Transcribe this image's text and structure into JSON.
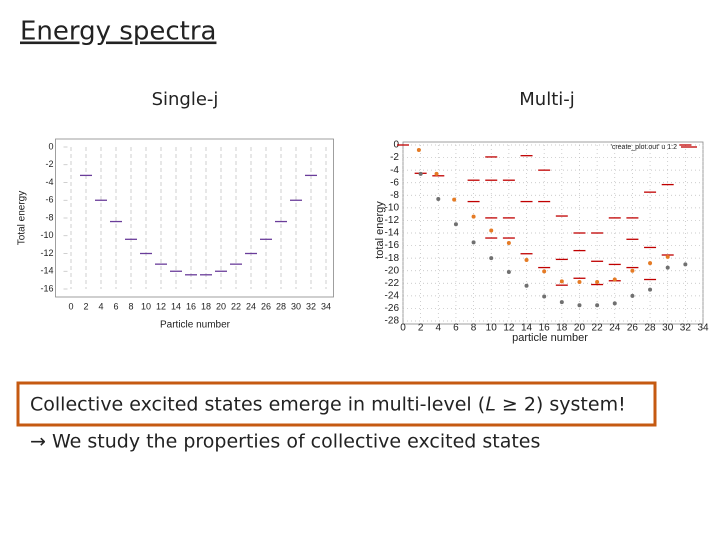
{
  "title": "Energy spectra",
  "highlight": "Collective excited states emerge in multi-level (𝐿 ≥ 2) system!",
  "note": "→ We study the properties of collective excited states",
  "chart_data": [
    {
      "type": "scatter",
      "subtitle": "Single-j",
      "x_label": "Particle number",
      "y_label": "Total energy",
      "xlim": [
        -1,
        35
      ],
      "ylim": [
        -16,
        0
      ],
      "xticks": [
        0,
        2,
        4,
        6,
        8,
        10,
        12,
        14,
        16,
        18,
        20,
        22,
        24,
        26,
        28,
        30,
        32,
        34
      ],
      "yticks": [
        0,
        -2,
        -4,
        -6,
        -8,
        -10,
        -12,
        -14,
        -16
      ],
      "grid": "x",
      "series": [
        {
          "color": "#6a3d9a",
          "marker": "dash",
          "x": [
            2,
            4,
            6,
            8,
            10,
            12,
            14,
            16,
            18,
            20,
            22,
            24,
            26,
            28,
            30,
            32
          ],
          "values": [
            -3.2,
            -6,
            -8.4,
            -10.4,
            -12,
            -13.2,
            -14,
            -14.4,
            -14.4,
            -14,
            -13.2,
            -12,
            -10.4,
            -8.4,
            -6,
            -3.2
          ]
        }
      ]
    },
    {
      "type": "scatter",
      "subtitle": "Multi-j",
      "x_label": "particle number",
      "y_label": "total energy",
      "xlim": [
        0,
        34
      ],
      "ylim": [
        -28,
        0
      ],
      "xticks": [
        0,
        2,
        4,
        6,
        8,
        10,
        12,
        14,
        16,
        18,
        20,
        22,
        24,
        26,
        28,
        30,
        32,
        34
      ],
      "yticks": [
        0,
        -2,
        -4,
        -6,
        -8,
        -10,
        -12,
        -14,
        -16,
        -18,
        -20,
        -22,
        -24,
        -26,
        -28
      ],
      "grid": "both",
      "legend": "upper right",
      "series": [
        {
          "name": "'create_plot.out' u 1:2",
          "color": "#c00000",
          "marker": "dash",
          "x": [
            0,
            2,
            4,
            8,
            8,
            10,
            10,
            10,
            10,
            12,
            12,
            12,
            14,
            14,
            14,
            16,
            16,
            16,
            18,
            18,
            18,
            20,
            20,
            20,
            22,
            22,
            22,
            24,
            24,
            24,
            26,
            26,
            26,
            28,
            28,
            28,
            30,
            30,
            32
          ],
          "values": [
            0,
            -4.5,
            -4.9,
            -5.6,
            -9,
            -1.9,
            -5.6,
            -11.6,
            -14.8,
            -5.6,
            -11.6,
            -14.8,
            -1.7,
            -9,
            -17.3,
            -4,
            -9,
            -19.5,
            -11.3,
            -18.2,
            -22.3,
            -14,
            -16.8,
            -21.2,
            -14,
            -18.5,
            -22.2,
            -11.6,
            -19,
            -21.6,
            -11.6,
            -15,
            -19.5,
            -7.5,
            -16.3,
            -21.4,
            -6.3,
            -17.5,
            0
          ]
        },
        {
          "color": "#e57b25",
          "marker": "circle",
          "x": [
            1.8,
            3.8,
            5.8,
            8,
            10,
            12,
            14,
            16,
            18,
            20,
            22,
            24,
            26,
            28,
            30
          ],
          "values": [
            -0.8,
            -4.6,
            -8.7,
            -11.4,
            -13.6,
            -15.6,
            -18.3,
            -20.1,
            -21.7,
            -21.8,
            -21.8,
            -21.4,
            -20,
            -18.8,
            -17.8
          ]
        },
        {
          "color": "#707070",
          "marker": "circle",
          "x": [
            2,
            4,
            6,
            8,
            10,
            12,
            14,
            16,
            18,
            20,
            22,
            24,
            26,
            28,
            30,
            32
          ],
          "values": [
            -4.6,
            -8.6,
            -12.6,
            -15.5,
            -18,
            -20.2,
            -22.4,
            -24.1,
            -25,
            -25.5,
            -25.5,
            -25.2,
            -24,
            -23,
            -19.5,
            -19
          ]
        }
      ]
    }
  ]
}
